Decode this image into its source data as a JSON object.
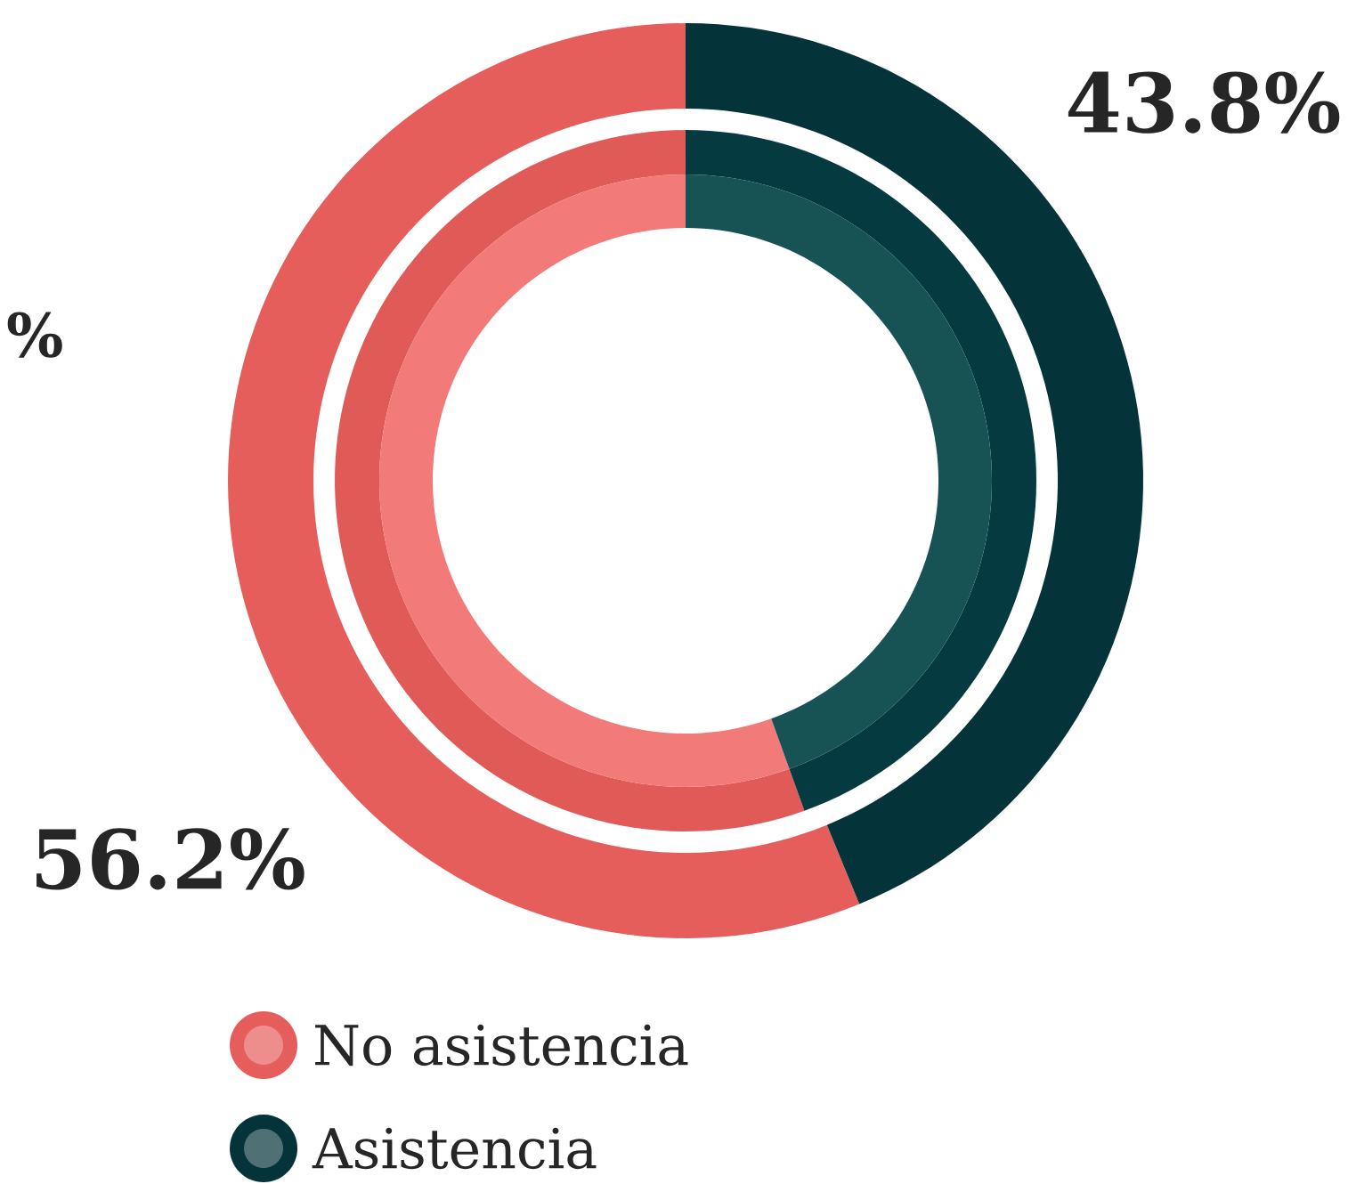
{
  "chart_data": {
    "type": "donut",
    "categories": [
      "No asistencia",
      "Asistencia"
    ],
    "series": [
      {
        "values": [
          56.2,
          43.8
        ],
        "colors": [
          "#e55e5c",
          "#04343a"
        ],
        "value_labels": [
          "56.2%",
          "43.8%"
        ]
      },
      {
        "values": [
          55.5,
          44.5
        ],
        "colors": [
          "#e05a58",
          "#053b40"
        ]
      },
      {
        "values": [
          55.5,
          44.5
        ],
        "colors": [
          "#f27a78",
          "#175255"
        ]
      }
    ],
    "annotations": [
      "%"
    ],
    "legend": "bottom left"
  }
}
